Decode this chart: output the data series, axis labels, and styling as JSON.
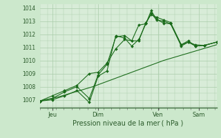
{
  "xlabel": "Pression niveau de la mer ( hPa )",
  "bg_color": "#cce8cc",
  "plot_bg": "#d8ecd8",
  "grid_color": "#aaccaa",
  "line_color": "#1a6b1a",
  "ylim": [
    1006.4,
    1014.3
  ],
  "xlim": [
    0,
    100
  ],
  "yticks": [
    1007,
    1008,
    1009,
    1010,
    1011,
    1012,
    1013,
    1014
  ],
  "xtick_positions": [
    7,
    33,
    67,
    90
  ],
  "xtick_labels": [
    "Jeu",
    "Dim",
    "Ven",
    "Sam"
  ],
  "series1_x": [
    0,
    5,
    10,
    15,
    20,
    25,
    30,
    35,
    40,
    45,
    50,
    55,
    60,
    65,
    70,
    75,
    80,
    85,
    90,
    95,
    100
  ],
  "series1_y": [
    1006.9,
    1007.05,
    1007.2,
    1007.4,
    1007.6,
    1007.8,
    1008.0,
    1008.25,
    1008.5,
    1008.75,
    1009.0,
    1009.25,
    1009.5,
    1009.75,
    1010.0,
    1010.2,
    1010.4,
    1010.6,
    1010.8,
    1011.0,
    1011.2
  ],
  "series2_x": [
    0,
    7,
    14,
    21,
    28,
    33,
    38,
    43,
    48,
    52,
    56,
    60,
    63,
    66,
    70,
    74,
    80,
    84,
    88,
    93,
    100
  ],
  "series2_y": [
    1006.9,
    1007.0,
    1007.3,
    1007.7,
    1006.8,
    1008.8,
    1009.2,
    1011.9,
    1011.7,
    1011.1,
    1011.6,
    1012.8,
    1013.8,
    1013.15,
    1012.85,
    1012.8,
    1011.2,
    1011.4,
    1011.2,
    1011.15,
    1011.4
  ],
  "series3_x": [
    0,
    7,
    14,
    21,
    28,
    33,
    38,
    43,
    48,
    52,
    56,
    60,
    63,
    66,
    70,
    74,
    80,
    84,
    88,
    93,
    100
  ],
  "series3_y": [
    1006.9,
    1007.1,
    1007.6,
    1008.0,
    1007.1,
    1008.9,
    1009.7,
    1011.8,
    1011.9,
    1011.5,
    1011.5,
    1012.9,
    1013.5,
    1013.3,
    1013.1,
    1012.9,
    1011.2,
    1011.5,
    1011.1,
    1011.15,
    1011.4
  ],
  "series4_x": [
    0,
    7,
    14,
    21,
    28,
    33,
    38,
    43,
    48,
    52,
    56,
    60,
    63,
    66,
    70,
    74,
    80,
    84,
    88,
    93,
    100
  ],
  "series4_y": [
    1006.9,
    1007.3,
    1007.7,
    1008.1,
    1009.0,
    1009.1,
    1009.8,
    1010.9,
    1011.6,
    1011.5,
    1012.7,
    1012.8,
    1013.6,
    1013.1,
    1013.0,
    1012.8,
    1011.1,
    1011.4,
    1011.1,
    1011.15,
    1011.4
  ]
}
